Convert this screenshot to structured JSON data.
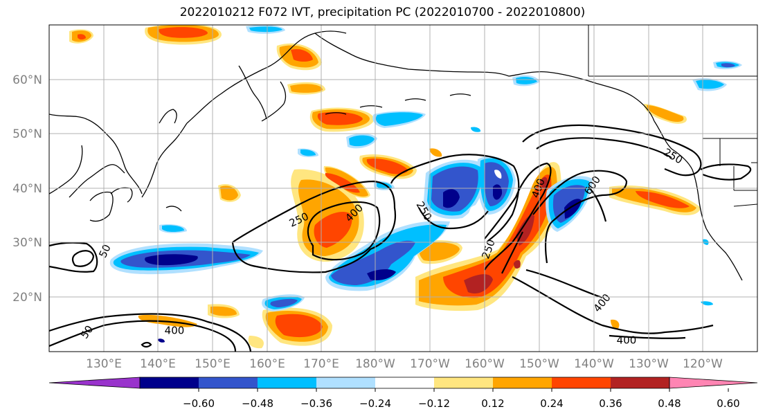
{
  "title": "2022010212 F072 IVT, precipitation PC (2022010700 - 2022010800)",
  "map": {
    "lat_ticks": [
      "60°N",
      "50°N",
      "40°N",
      "30°N",
      "20°N"
    ],
    "lon_ticks": [
      "130°E",
      "140°E",
      "150°E",
      "160°E",
      "170°E",
      "180°W",
      "170°W",
      "160°W",
      "150°W",
      "140°W",
      "130°W",
      "120°W"
    ],
    "gridlines": true,
    "tick_label_color": "#808080",
    "contour_labels": [
      "50",
      "250",
      "400",
      "250",
      "250",
      "400",
      "600",
      "250",
      "400",
      "400",
      "400",
      "50"
    ]
  },
  "colorbar": {
    "orientation": "horizontal",
    "extend": "both",
    "colors": [
      "#9933cc",
      "#00008b",
      "#3355cc",
      "#00bfff",
      "#b0e0ff",
      "#ffffff",
      "#ffe680",
      "#ffa500",
      "#ff4500",
      "#b22222",
      "#ff85b3"
    ],
    "tick_labels": [
      "−0.60",
      "−0.48",
      "−0.36",
      "−0.24",
      "−0.12",
      "0.12",
      "0.24",
      "0.36",
      "0.48",
      "0.60"
    ]
  }
}
